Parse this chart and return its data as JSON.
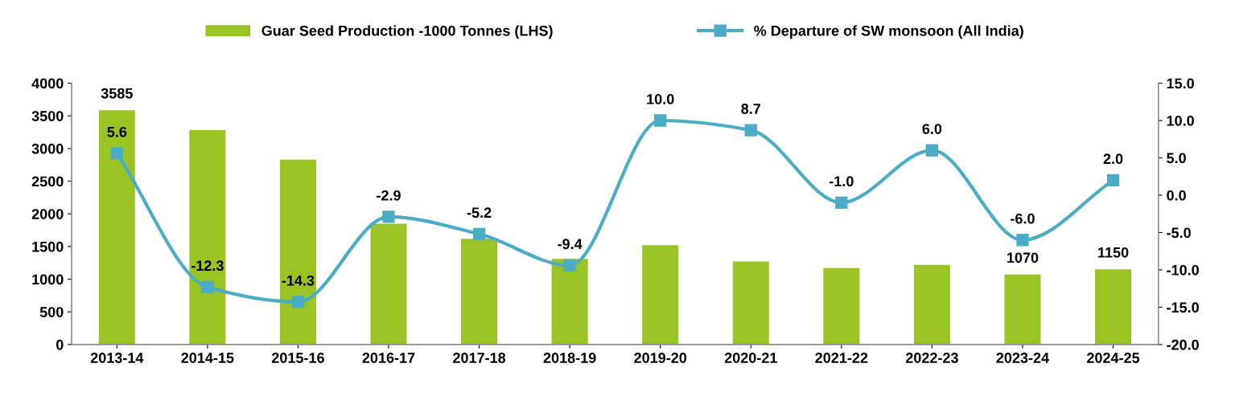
{
  "chart_data": {
    "type": "bar",
    "categories": [
      "2013-14",
      "2014-15",
      "2015-16",
      "2016-17",
      "2017-18",
      "2018-19",
      "2019-20",
      "2020-21",
      "2021-22",
      "2022-23",
      "2023-24",
      "2024-25"
    ],
    "series": [
      {
        "name": "Guar Seed Production -1000 Tonnes (LHS)",
        "color": "#99c424",
        "values": [
          3585,
          3280,
          2830,
          1850,
          1620,
          1310,
          1520,
          1270,
          1170,
          1220,
          1070,
          1150
        ],
        "value_labels": [
          "3585",
          null,
          null,
          null,
          null,
          null,
          null,
          null,
          null,
          null,
          "1070",
          "1150"
        ]
      },
      {
        "name": "% Departure of SW monsoon (All India)",
        "type": "line",
        "axis": "y2",
        "color": "#4bacc6",
        "marker": "square",
        "values": [
          5.6,
          -12.3,
          -14.3,
          -2.9,
          -5.2,
          -9.4,
          10.0,
          8.7,
          -1.0,
          6.0,
          -6.0,
          2.0
        ],
        "value_labels": [
          "5.6",
          "-12.3",
          "-14.3",
          "-2.9",
          "-5.2",
          "-9.4",
          "10.0",
          "8.7",
          "-1.0",
          "6.0",
          "-6.0",
          "2.0"
        ]
      }
    ],
    "ylim": [
      0,
      4000
    ],
    "yticks": [
      0,
      500,
      1000,
      1500,
      2000,
      2500,
      3000,
      3500,
      4000
    ],
    "y2lim": [
      -20,
      15
    ],
    "y2ticks": [
      {
        "value": -20,
        "label": "-20.0"
      },
      {
        "value": -15,
        "label": "-15.0"
      },
      {
        "value": -10,
        "label": "-10.0"
      },
      {
        "value": -5,
        "label": "-5.0"
      },
      {
        "value": 0,
        "label": "0.0"
      },
      {
        "value": 5,
        "label": "5.0"
      },
      {
        "value": 10,
        "label": "10.0"
      },
      {
        "value": 15,
        "label": "15.0"
      }
    ],
    "grid": false,
    "legend": "top"
  }
}
